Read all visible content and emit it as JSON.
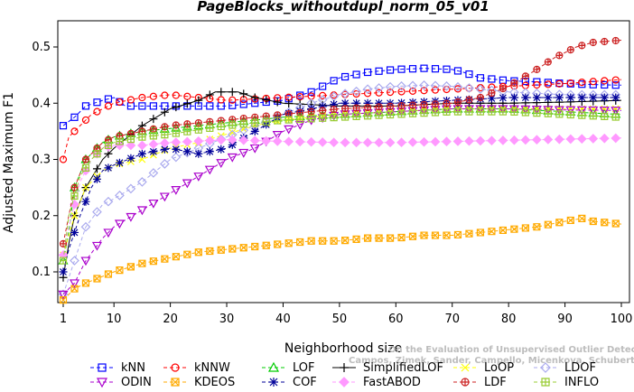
{
  "chart_data": {
    "type": "line",
    "title": "PageBlocks_withoutdupl_norm_05_v01",
    "xlabel": "Neighborhood size",
    "ylabel": "Adjusted Maximum F1",
    "xlim": [
      1,
      100
    ],
    "ylim": [
      0.05,
      0.55
    ],
    "xticks": [
      1,
      10,
      20,
      30,
      40,
      50,
      60,
      70,
      80,
      90,
      100
    ],
    "yticks": [
      0.1,
      0.2,
      0.3,
      0.4,
      0.5
    ],
    "legend_position": "bottom",
    "series": [
      {
        "name": "kNN",
        "color": "#0000ff",
        "marker": "square",
        "dash": "4,3",
        "points": [
          [
            1,
            0.36
          ],
          [
            3,
            0.375
          ],
          [
            5,
            0.395
          ],
          [
            8,
            0.405
          ],
          [
            10,
            0.41
          ],
          [
            12,
            0.395
          ],
          [
            20,
            0.395
          ],
          [
            30,
            0.395
          ],
          [
            40,
            0.405
          ],
          [
            45,
            0.42
          ],
          [
            50,
            0.445
          ],
          [
            55,
            0.455
          ],
          [
            60,
            0.46
          ],
          [
            65,
            0.462
          ],
          [
            70,
            0.46
          ],
          [
            72,
            0.455
          ],
          [
            75,
            0.445
          ],
          [
            80,
            0.44
          ],
          [
            85,
            0.438
          ],
          [
            90,
            0.435
          ],
          [
            95,
            0.433
          ],
          [
            100,
            0.432
          ]
        ]
      },
      {
        "name": "kNNW",
        "color": "#ff0000",
        "marker": "circle",
        "dash": "4,3",
        "points": [
          [
            1,
            0.3
          ],
          [
            2,
            0.34
          ],
          [
            4,
            0.36
          ],
          [
            6,
            0.38
          ],
          [
            8,
            0.39
          ],
          [
            10,
            0.4
          ],
          [
            15,
            0.41
          ],
          [
            20,
            0.415
          ],
          [
            25,
            0.41
          ],
          [
            30,
            0.405
          ],
          [
            40,
            0.41
          ],
          [
            50,
            0.415
          ],
          [
            60,
            0.42
          ],
          [
            70,
            0.425
          ],
          [
            80,
            0.43
          ],
          [
            90,
            0.435
          ],
          [
            100,
            0.442
          ]
        ]
      },
      {
        "name": "LOF",
        "color": "#00cc00",
        "marker": "triangle-up",
        "dash": "4,3",
        "points": [
          [
            1,
            0.12
          ],
          [
            2,
            0.17
          ],
          [
            3,
            0.25
          ],
          [
            5,
            0.3
          ],
          [
            8,
            0.33
          ],
          [
            10,
            0.34
          ],
          [
            15,
            0.35
          ],
          [
            20,
            0.355
          ],
          [
            25,
            0.36
          ],
          [
            30,
            0.365
          ],
          [
            40,
            0.375
          ],
          [
            50,
            0.38
          ],
          [
            60,
            0.385
          ],
          [
            70,
            0.39
          ],
          [
            80,
            0.39
          ],
          [
            90,
            0.385
          ],
          [
            100,
            0.38
          ]
        ]
      },
      {
        "name": "SimplifiedLOF",
        "color": "#000000",
        "marker": "plus",
        "dash": "",
        "points": [
          [
            1,
            0.09
          ],
          [
            2,
            0.15
          ],
          [
            3,
            0.2
          ],
          [
            5,
            0.25
          ],
          [
            8,
            0.3
          ],
          [
            10,
            0.32
          ],
          [
            15,
            0.36
          ],
          [
            20,
            0.39
          ],
          [
            25,
            0.405
          ],
          [
            28,
            0.42
          ],
          [
            32,
            0.42
          ],
          [
            35,
            0.41
          ],
          [
            40,
            0.4
          ],
          [
            50,
            0.395
          ],
          [
            60,
            0.395
          ],
          [
            70,
            0.4
          ],
          [
            80,
            0.4
          ],
          [
            90,
            0.402
          ],
          [
            100,
            0.405
          ]
        ]
      },
      {
        "name": "LoOP",
        "color": "#ffff00",
        "marker": "x",
        "dash": "4,3",
        "points": [
          [
            1,
            0.13
          ],
          [
            3,
            0.2
          ],
          [
            5,
            0.25
          ],
          [
            8,
            0.28
          ],
          [
            10,
            0.29
          ],
          [
            15,
            0.3
          ],
          [
            20,
            0.32
          ],
          [
            25,
            0.33
          ],
          [
            30,
            0.345
          ],
          [
            35,
            0.36
          ],
          [
            40,
            0.37
          ],
          [
            50,
            0.38
          ],
          [
            60,
            0.385
          ],
          [
            70,
            0.39
          ],
          [
            80,
            0.39
          ],
          [
            90,
            0.39
          ],
          [
            100,
            0.39
          ]
        ]
      },
      {
        "name": "LDOF",
        "color": "#aaaaee",
        "marker": "diamond",
        "dash": "4,3",
        "points": [
          [
            1,
            0.06
          ],
          [
            3,
            0.12
          ],
          [
            5,
            0.18
          ],
          [
            8,
            0.22
          ],
          [
            10,
            0.23
          ],
          [
            15,
            0.26
          ],
          [
            20,
            0.3
          ],
          [
            25,
            0.32
          ],
          [
            30,
            0.34
          ],
          [
            35,
            0.36
          ],
          [
            40,
            0.38
          ],
          [
            45,
            0.4
          ],
          [
            50,
            0.415
          ],
          [
            55,
            0.425
          ],
          [
            60,
            0.43
          ],
          [
            65,
            0.432
          ],
          [
            70,
            0.43
          ],
          [
            80,
            0.42
          ],
          [
            90,
            0.415
          ],
          [
            100,
            0.415
          ]
        ]
      },
      {
        "name": "ODIN",
        "color": "#aa00cc",
        "marker": "triangle-down",
        "dash": "4,3",
        "points": [
          [
            1,
            0.06
          ],
          [
            3,
            0.08
          ],
          [
            5,
            0.12
          ],
          [
            8,
            0.16
          ],
          [
            10,
            0.18
          ],
          [
            15,
            0.21
          ],
          [
            20,
            0.24
          ],
          [
            25,
            0.27
          ],
          [
            30,
            0.3
          ],
          [
            35,
            0.32
          ],
          [
            40,
            0.35
          ],
          [
            45,
            0.37
          ],
          [
            50,
            0.38
          ],
          [
            60,
            0.385
          ],
          [
            70,
            0.39
          ],
          [
            80,
            0.39
          ],
          [
            90,
            0.388
          ],
          [
            100,
            0.387
          ]
        ]
      },
      {
        "name": "KDEOS",
        "color": "#ffaa00",
        "marker": "square-x",
        "dash": "4,3",
        "points": [
          [
            1,
            0.05
          ],
          [
            3,
            0.07
          ],
          [
            5,
            0.08
          ],
          [
            10,
            0.1
          ],
          [
            15,
            0.115
          ],
          [
            20,
            0.125
          ],
          [
            25,
            0.135
          ],
          [
            30,
            0.14
          ],
          [
            35,
            0.145
          ],
          [
            40,
            0.15
          ],
          [
            45,
            0.155
          ],
          [
            50,
            0.155
          ],
          [
            55,
            0.16
          ],
          [
            60,
            0.16
          ],
          [
            65,
            0.165
          ],
          [
            70,
            0.165
          ],
          [
            75,
            0.17
          ],
          [
            80,
            0.175
          ],
          [
            85,
            0.18
          ],
          [
            90,
            0.19
          ],
          [
            93,
            0.195
          ],
          [
            95,
            0.19
          ],
          [
            100,
            0.185
          ]
        ]
      },
      {
        "name": "COF",
        "color": "#000099",
        "marker": "asterisk",
        "dash": "4,3",
        "points": [
          [
            1,
            0.1
          ],
          [
            2,
            0.14
          ],
          [
            4,
            0.2
          ],
          [
            6,
            0.25
          ],
          [
            8,
            0.28
          ],
          [
            10,
            0.29
          ],
          [
            15,
            0.31
          ],
          [
            20,
            0.32
          ],
          [
            25,
            0.31
          ],
          [
            30,
            0.32
          ],
          [
            35,
            0.35
          ],
          [
            40,
            0.38
          ],
          [
            45,
            0.39
          ],
          [
            50,
            0.4
          ],
          [
            60,
            0.4
          ],
          [
            70,
            0.405
          ],
          [
            80,
            0.41
          ],
          [
            90,
            0.41
          ],
          [
            100,
            0.41
          ]
        ]
      },
      {
        "name": "FastABOD",
        "color": "#ff99ff",
        "marker": "diamond-filled",
        "dash": "4,3",
        "points": [
          [
            1,
            0.13
          ],
          [
            2,
            0.18
          ],
          [
            4,
            0.26
          ],
          [
            6,
            0.3
          ],
          [
            8,
            0.32
          ],
          [
            10,
            0.325
          ],
          [
            15,
            0.325
          ],
          [
            20,
            0.33
          ],
          [
            30,
            0.335
          ],
          [
            40,
            0.332
          ],
          [
            50,
            0.33
          ],
          [
            60,
            0.33
          ],
          [
            70,
            0.332
          ],
          [
            80,
            0.334
          ],
          [
            90,
            0.336
          ],
          [
            100,
            0.338
          ]
        ]
      },
      {
        "name": "LDF",
        "color": "#cc2222",
        "marker": "circle-plus",
        "dash": "4,3",
        "points": [
          [
            1,
            0.15
          ],
          [
            2,
            0.2
          ],
          [
            3,
            0.25
          ],
          [
            5,
            0.3
          ],
          [
            8,
            0.33
          ],
          [
            10,
            0.34
          ],
          [
            15,
            0.35
          ],
          [
            20,
            0.36
          ],
          [
            30,
            0.37
          ],
          [
            40,
            0.38
          ],
          [
            50,
            0.39
          ],
          [
            60,
            0.395
          ],
          [
            70,
            0.4
          ],
          [
            75,
            0.41
          ],
          [
            80,
            0.43
          ],
          [
            85,
            0.46
          ],
          [
            88,
            0.48
          ],
          [
            92,
            0.5
          ],
          [
            95,
            0.508
          ],
          [
            100,
            0.512
          ]
        ]
      },
      {
        "name": "INFLO",
        "color": "#99cc33",
        "marker": "star",
        "dash": "4,3",
        "points": [
          [
            1,
            0.12
          ],
          [
            2,
            0.2
          ],
          [
            4,
            0.27
          ],
          [
            6,
            0.3
          ],
          [
            8,
            0.32
          ],
          [
            10,
            0.33
          ],
          [
            15,
            0.34
          ],
          [
            20,
            0.345
          ],
          [
            30,
            0.36
          ],
          [
            40,
            0.37
          ],
          [
            50,
            0.375
          ],
          [
            60,
            0.38
          ],
          [
            70,
            0.385
          ],
          [
            80,
            0.385
          ],
          [
            90,
            0.38
          ],
          [
            100,
            0.375
          ]
        ]
      }
    ]
  },
  "watermark": {
    "line1": "Campos, Zimek, Sander, Campello, Micenkova, Schubert, Assent, Houle",
    "line2": "On the Evaluation of Unsupervised Outlier Detection. DAMI, 2015."
  }
}
